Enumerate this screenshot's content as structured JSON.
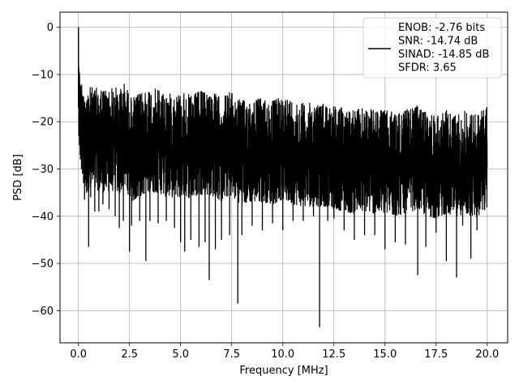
{
  "chart_data": {
    "type": "line",
    "title": "",
    "xlabel": "Frequency [MHz]",
    "ylabel": "PSD [dB]",
    "xlim": [
      -0.9,
      21.0
    ],
    "ylim": [
      -66.8,
      3.2
    ],
    "xticks": [
      0.0,
      2.5,
      5.0,
      7.5,
      10.0,
      12.5,
      15.0,
      17.5,
      20.0
    ],
    "xtick_labels": [
      "0.0",
      "2.5",
      "5.0",
      "7.5",
      "10.0",
      "12.5",
      "15.0",
      "17.5",
      "20.0"
    ],
    "yticks": [
      0,
      -10,
      -20,
      -30,
      -40,
      -50,
      -60
    ],
    "ytick_labels": [
      "0",
      "−10",
      "−20",
      "−30",
      "−40",
      "−50",
      "−60"
    ],
    "grid": true,
    "legend_position": "top-right",
    "series": [
      {
        "color": "#000000",
        "legend_lines": [
          "ENOB: -2.76 bits",
          "SNR: -14.74 dB",
          "SINAD: -14.85 dB",
          "SFDR: 3.65"
        ],
        "x": [
          0.0,
          0.02,
          0.05,
          0.08,
          0.1,
          0.15,
          0.2,
          0.25,
          0.3,
          0.4,
          0.5,
          0.6,
          0.8,
          1.0,
          1.2,
          1.5,
          1.8,
          2.0,
          2.2,
          2.5,
          2.6,
          3.0,
          3.3,
          3.5,
          3.9,
          4.3,
          4.7,
          5.0,
          5.2,
          5.5,
          5.9,
          6.2,
          6.4,
          6.7,
          7.0,
          7.4,
          7.8,
          8.0,
          8.5,
          9.0,
          9.5,
          10.0,
          10.5,
          11.0,
          11.5,
          11.8,
          12.2,
          12.5,
          13.0,
          13.5,
          14.0,
          14.5,
          15.0,
          15.5,
          16.0,
          16.6,
          17.0,
          17.5,
          18.0,
          18.5,
          18.8,
          19.2,
          19.5,
          20.0
        ],
        "upper": [
          0.0,
          -4.6,
          -6.5,
          -8.0,
          -9.0,
          -10.0,
          -10.5,
          -11.5,
          -12.0,
          -12.0,
          -13.0,
          -12.5,
          -13.0,
          -12.5,
          -13.0,
          -13.0,
          -12.5,
          -13.5,
          -11.5,
          -14.0,
          -15.0,
          -14.0,
          -13.0,
          -13.0,
          -13.0,
          -14.0,
          -14.0,
          -14.0,
          -13.5,
          -14.5,
          -13.5,
          -13.5,
          -13.5,
          -14.0,
          -15.0,
          -13.5,
          -15.0,
          -15.5,
          -15.0,
          -15.0,
          -15.5,
          -14.5,
          -15.5,
          -16.0,
          -16.0,
          -16.0,
          -16.0,
          -16.5,
          -17.0,
          -17.5,
          -17.0,
          -17.5,
          -17.5,
          -18.0,
          -17.5,
          -16.5,
          -18.0,
          -18.5,
          -17.5,
          -18.5,
          -17.5,
          -18.0,
          -18.5,
          -16.5
        ],
        "lower": [
          -17.0,
          -23.0,
          -25.0,
          -27.0,
          -28.0,
          -30.0,
          -31.0,
          -33.0,
          -36.5,
          -35.0,
          -46.5,
          -36.0,
          -39.0,
          -39.0,
          -37.5,
          -38.5,
          -40.0,
          -42.5,
          -41.0,
          -47.5,
          -42.0,
          -41.0,
          -49.5,
          -41.0,
          -41.5,
          -41.0,
          -42.5,
          -45.5,
          -47.5,
          -45.0,
          -46.5,
          -45.5,
          -53.5,
          -47.0,
          -45.0,
          -44.0,
          -58.5,
          -44.0,
          -42.0,
          -43.0,
          -41.5,
          -43.0,
          -41.0,
          -41.0,
          -40.0,
          -63.5,
          -41.0,
          -40.5,
          -43.0,
          -45.0,
          -44.0,
          -44.0,
          -47.0,
          -45.5,
          -46.0,
          -52.5,
          -46.5,
          -43.5,
          -49.5,
          -53.0,
          -42.0,
          -49.0,
          -43.0,
          -40.5
        ],
        "final_value": -29.5
      }
    ]
  }
}
